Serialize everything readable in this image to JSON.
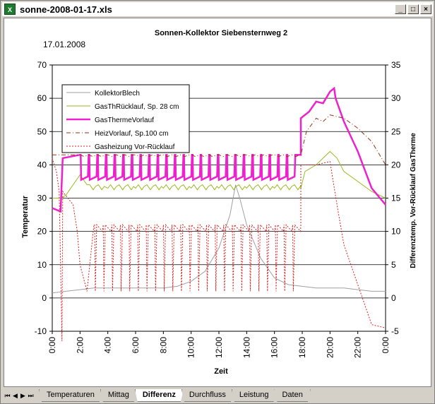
{
  "window": {
    "title": "sonne-2008-01-17.xls",
    "icon": "excel-icon",
    "minimize": "_",
    "maximize": "□",
    "close": "×"
  },
  "chart": {
    "title": "Sonnen-Kollektor Siebensternweg 2",
    "date": "17.01.2008",
    "ylabel_left": "Temperatur",
    "ylabel_right": "Differenztemp. Vor-Rücklauf GasTherme",
    "xlabel": "Zeit"
  },
  "chart_data": {
    "type": "line",
    "x_ticks": [
      "0:00",
      "2:00",
      "4:00",
      "6:00",
      "8:00",
      "10:00",
      "12:00",
      "14:00",
      "16:00",
      "18:00",
      "20:00",
      "22:00",
      "0:00"
    ],
    "y_left_ticks": [
      "70",
      "60",
      "50",
      "40",
      "30",
      "20",
      "10",
      "0",
      "-10"
    ],
    "y_right_ticks": [
      "35",
      "30",
      "25",
      "20",
      "15",
      "10",
      "5",
      "0",
      "-5"
    ],
    "ylim_left": [
      -10,
      70
    ],
    "ylim_right": [
      -5,
      35
    ],
    "xlim_hours": [
      0,
      24
    ],
    "grid": true,
    "legend_position": "top-left",
    "series": [
      {
        "name": "KollektorBlech",
        "color": "#a0a0a0",
        "style": "solid",
        "axis": "left",
        "points": [
          [
            0,
            1.5
          ],
          [
            1,
            2
          ],
          [
            2,
            2.5
          ],
          [
            3,
            3
          ],
          [
            5,
            3
          ],
          [
            8,
            3
          ],
          [
            9,
            3.5
          ],
          [
            10,
            5
          ],
          [
            11,
            8
          ],
          [
            12,
            15
          ],
          [
            12.8,
            25
          ],
          [
            13.2,
            34
          ],
          [
            13.5,
            30
          ],
          [
            14,
            22
          ],
          [
            15,
            12
          ],
          [
            16,
            6
          ],
          [
            17,
            4
          ],
          [
            18,
            3.5
          ],
          [
            19,
            3
          ],
          [
            20,
            3
          ],
          [
            21,
            3
          ],
          [
            22,
            2.5
          ],
          [
            23,
            2
          ],
          [
            24,
            2
          ]
        ]
      },
      {
        "name": "GasThRücklauf, Sp. 28 cm",
        "color": "#99bb22",
        "style": "solid",
        "axis": "left",
        "points": [
          [
            0,
            30
          ],
          [
            0.7,
            30
          ],
          [
            1,
            31
          ],
          [
            1.5,
            34
          ],
          [
            2,
            37
          ],
          [
            2.5,
            34
          ],
          [
            4,
            33
          ],
          [
            6,
            33
          ],
          [
            8,
            33
          ],
          [
            10,
            33
          ],
          [
            12,
            33
          ],
          [
            14,
            33
          ],
          [
            16,
            33
          ],
          [
            17.9,
            33
          ],
          [
            18.2,
            38
          ],
          [
            19,
            40
          ],
          [
            19.5,
            42
          ],
          [
            20,
            44
          ],
          [
            20.5,
            42
          ],
          [
            21,
            38
          ],
          [
            22,
            35
          ],
          [
            23,
            32
          ],
          [
            24,
            30
          ]
        ]
      },
      {
        "name": "GasThermeVorlauf",
        "color": "#ee22cc",
        "style": "solid",
        "axis": "left",
        "width": 2.5,
        "points": [
          [
            0,
            27
          ],
          [
            0.6,
            26
          ],
          [
            0.75,
            42
          ],
          [
            2,
            43
          ],
          [
            17.9,
            43
          ],
          [
            17.9,
            54
          ],
          [
            18.5,
            56
          ],
          [
            19,
            59
          ],
          [
            19.5,
            58.5
          ],
          [
            20,
            62
          ],
          [
            20.3,
            63
          ],
          [
            20.4,
            60
          ],
          [
            21,
            53
          ],
          [
            22,
            44
          ],
          [
            23,
            33
          ],
          [
            24,
            28
          ]
        ]
      },
      {
        "name": "HeizVorlauf,  Sp.100 cm",
        "color": "#993311",
        "style": "dashdot",
        "axis": "left",
        "points": [
          [
            0,
            43
          ],
          [
            1,
            43
          ],
          [
            2,
            43
          ],
          [
            4,
            43
          ],
          [
            6,
            43
          ],
          [
            8,
            43
          ],
          [
            10,
            43
          ],
          [
            12,
            43
          ],
          [
            14,
            43
          ],
          [
            16,
            43
          ],
          [
            17.9,
            43
          ],
          [
            18.3,
            50
          ],
          [
            19,
            54
          ],
          [
            19.5,
            53
          ],
          [
            20,
            55
          ],
          [
            21,
            54
          ],
          [
            22,
            51
          ],
          [
            23,
            47
          ],
          [
            24,
            40
          ]
        ]
      },
      {
        "name": "Gasheizung Vor-Rücklauf",
        "color": "#dd2222",
        "style": "dotted",
        "axis": "right",
        "points": [
          [
            0,
            21
          ],
          [
            0.3,
            19
          ],
          [
            0.5,
            16
          ],
          [
            0.7,
            -6.5
          ],
          [
            0.75,
            16
          ],
          [
            1.5,
            14
          ],
          [
            1.8,
            10
          ],
          [
            2,
            5
          ],
          [
            2.5,
            1
          ],
          [
            3,
            11
          ],
          [
            17.9,
            11
          ],
          [
            17.9,
            20
          ],
          [
            19,
            20
          ],
          [
            20,
            20.5
          ],
          [
            20.5,
            14
          ],
          [
            21,
            8
          ],
          [
            22,
            2
          ],
          [
            23,
            -4
          ],
          [
            24,
            -4.5
          ]
        ]
      }
    ],
    "oscillation": {
      "hour_start": 2.0,
      "hour_end": 17.9,
      "period_h": 0.62
    }
  },
  "tabs": {
    "nav": [
      "⏮",
      "◀",
      "▶",
      "⏭"
    ],
    "items": [
      {
        "label": "Temperaturen",
        "active": false
      },
      {
        "label": "Mittag",
        "active": false
      },
      {
        "label": "Differenz",
        "active": true
      },
      {
        "label": "Durchfluss",
        "active": false
      },
      {
        "label": "Leistung",
        "active": false
      },
      {
        "label": "Daten",
        "active": false
      }
    ]
  }
}
